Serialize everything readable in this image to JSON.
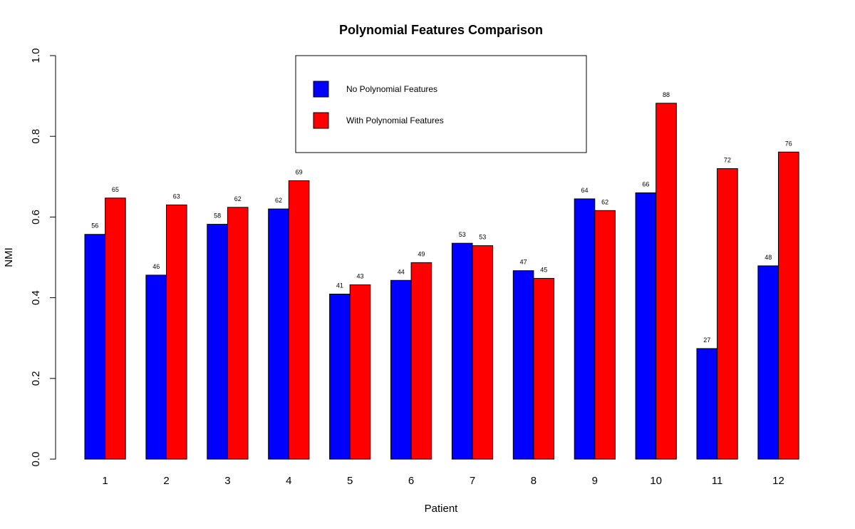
{
  "chart_data": {
    "type": "bar",
    "title": "Polynomial Features Comparison",
    "xlabel": "Patient",
    "ylabel": "NMI",
    "ylim": [
      0,
      1
    ],
    "yticks": [
      "0.0",
      "0.2",
      "0.4",
      "0.6",
      "0.8",
      "1.0"
    ],
    "categories": [
      "1",
      "2",
      "3",
      "4",
      "5",
      "6",
      "7",
      "8",
      "9",
      "10",
      "11",
      "12"
    ],
    "series": [
      {
        "name": "No Polynomial Features",
        "color": "#0000ff",
        "values": [
          0.557,
          0.456,
          0.582,
          0.62,
          0.409,
          0.443,
          0.535,
          0.467,
          0.645,
          0.66,
          0.274,
          0.479
        ],
        "labels": [
          "56",
          "46",
          "58",
          "62",
          "41",
          "44",
          "53",
          "47",
          "64",
          "66",
          "27",
          "48"
        ]
      },
      {
        "name": "With Polynomial Features",
        "color": "#ff0000",
        "values": [
          0.647,
          0.63,
          0.624,
          0.69,
          0.432,
          0.487,
          0.529,
          0.448,
          0.616,
          0.882,
          0.72,
          0.761
        ],
        "labels": [
          "65",
          "63",
          "62",
          "69",
          "43",
          "49",
          "53",
          "45",
          "62",
          "88",
          "72",
          "76"
        ]
      }
    ],
    "grid": false,
    "legend_position": "top-center"
  }
}
